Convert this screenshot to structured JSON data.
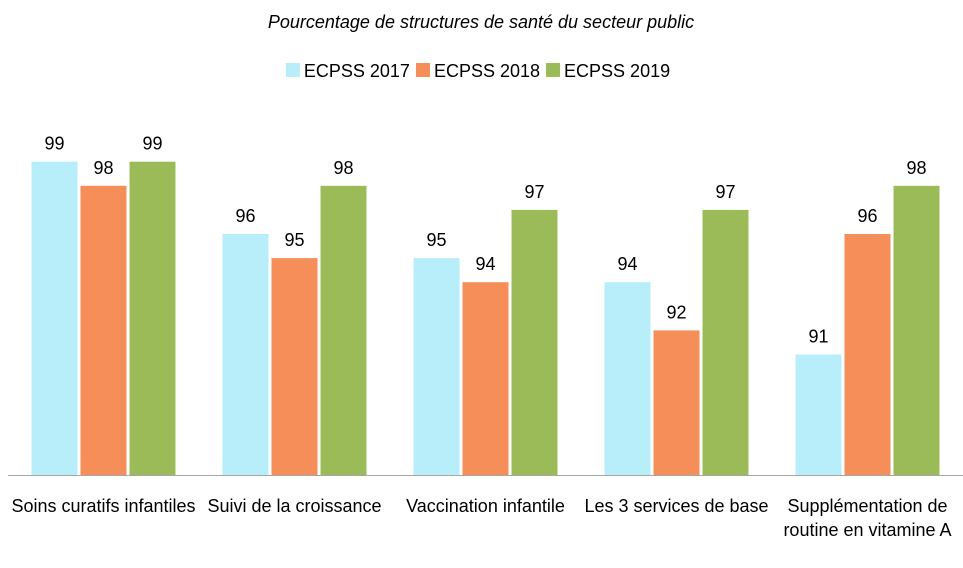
{
  "chart_data": {
    "type": "bar",
    "title": "Pourcentage de structures de santé du secteur public",
    "categories": [
      "Soins curatifs infantiles",
      "Suivi de la croissance",
      "Vaccination infantile",
      "Les 3 services de base",
      "Supplémentation de routine en vitamine A"
    ],
    "series": [
      {
        "name": "ECPSS 2017",
        "color": "#b7eefa",
        "values": [
          99,
          96,
          95,
          94,
          91
        ]
      },
      {
        "name": "ECPSS 2018",
        "color": "#f58e59",
        "values": [
          98,
          95,
          94,
          92,
          96
        ]
      },
      {
        "name": "ECPSS 2019",
        "color": "#9bbb59",
        "values": [
          99,
          98,
          97,
          97,
          98
        ]
      }
    ],
    "ylim": [
      86,
      100
    ]
  }
}
